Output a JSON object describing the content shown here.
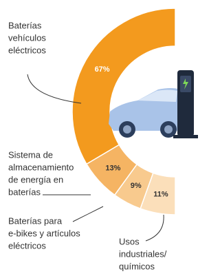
{
  "chart_data": {
    "type": "pie",
    "categories": [
      [
        "Baterías",
        "vehículos",
        "eléctricos"
      ],
      [
        "Sistema de",
        "almacenamiento",
        "de energía en",
        "baterías"
      ],
      [
        "Baterías para",
        "e-bikes y artículos",
        "eléctricos"
      ],
      [
        "Usos",
        "industriales/",
        "químicos"
      ]
    ],
    "values": [
      67,
      13,
      9,
      11
    ],
    "value_labels": [
      "67%",
      "13%",
      "9%",
      "11%"
    ],
    "colors": [
      "#f39a1e",
      "#f5b463",
      "#f8ca8e",
      "#fbdfba"
    ],
    "value_label_colors": [
      "#ffffff",
      "#333333",
      "#333333",
      "#333333"
    ]
  }
}
